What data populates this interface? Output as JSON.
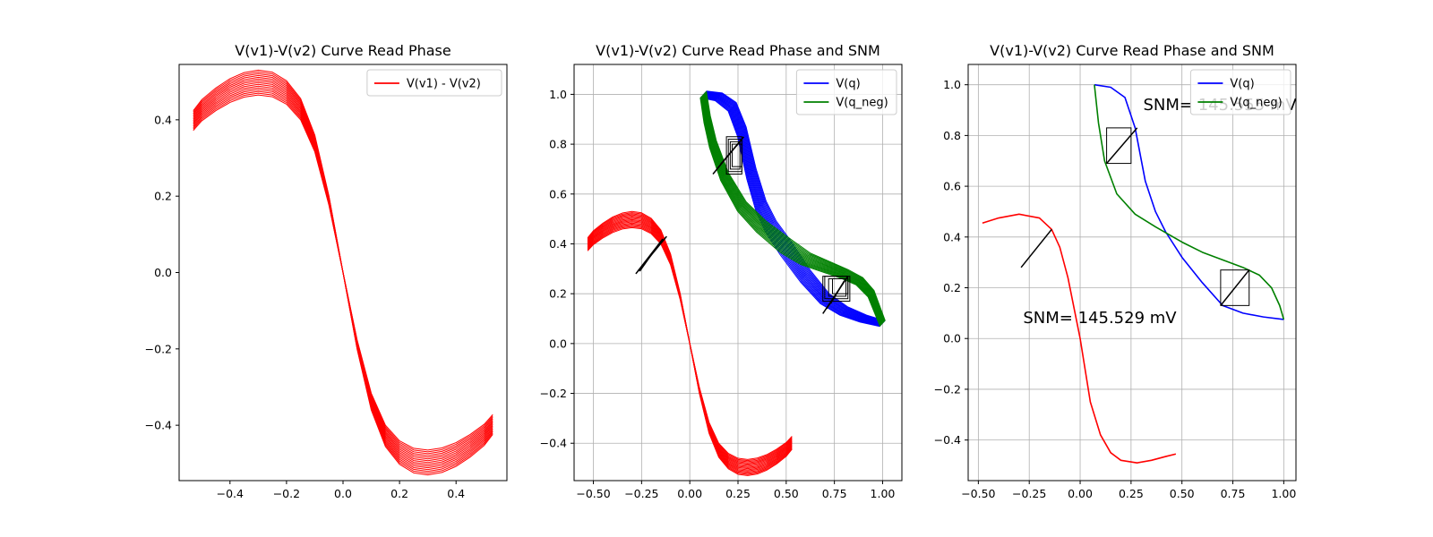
{
  "chart_data": [
    {
      "type": "line",
      "title": "V(v1)-V(v2) Curve Read Phase",
      "xlabel": "",
      "ylabel": "",
      "xlim": [
        -0.58,
        0.58
      ],
      "ylim": [
        -0.545,
        0.545
      ],
      "xticks": [
        -0.4,
        -0.2,
        0.0,
        0.2,
        0.4
      ],
      "xtick_labels": [
        "−0.4",
        "−0.2",
        "0.0",
        "0.2",
        "0.4"
      ],
      "yticks": [
        -0.4,
        -0.2,
        0.0,
        0.2,
        0.4
      ],
      "ytick_labels": [
        "−0.4",
        "−0.2",
        "0.0",
        "0.2",
        "0.4"
      ],
      "grid": false,
      "legend": "top-right",
      "series": [
        {
          "name": "V(v1) - V(v2)",
          "color": "#ff0000",
          "family_count": 15,
          "scale_range": [
            0.93,
            1.06
          ],
          "points": [
            [
              -0.53,
              0.4
            ],
            [
              -0.5,
              0.427
            ],
            [
              -0.45,
              0.456
            ],
            [
              -0.4,
              0.479
            ],
            [
              -0.35,
              0.494
            ],
            [
              -0.3,
              0.5
            ],
            [
              -0.25,
              0.495
            ],
            [
              -0.2,
              0.474
            ],
            [
              -0.15,
              0.43
            ],
            [
              -0.1,
              0.34
            ],
            [
              -0.05,
              0.19
            ],
            [
              0.0,
              0.0
            ],
            [
              0.05,
              -0.19
            ],
            [
              0.1,
              -0.34
            ],
            [
              0.15,
              -0.43
            ],
            [
              0.2,
              -0.474
            ],
            [
              0.25,
              -0.495
            ],
            [
              0.3,
              -0.5
            ],
            [
              0.35,
              -0.494
            ],
            [
              0.4,
              -0.479
            ],
            [
              0.45,
              -0.456
            ],
            [
              0.5,
              -0.427
            ],
            [
              0.53,
              -0.4
            ]
          ]
        }
      ]
    },
    {
      "type": "line",
      "title": "V(v1)-V(v2) Curve Read Phase and SNM",
      "xlabel": "",
      "ylabel": "",
      "xlim": [
        -0.6,
        1.1
      ],
      "ylim": [
        -0.55,
        1.12
      ],
      "xticks": [
        -0.5,
        -0.25,
        0.0,
        0.25,
        0.5,
        0.75,
        1.0
      ],
      "xtick_labels": [
        "−0.50",
        "−0.25",
        "0.00",
        "0.25",
        "0.50",
        "0.75",
        "1.00"
      ],
      "yticks": [
        -0.4,
        -0.2,
        0.0,
        0.2,
        0.4,
        0.6,
        0.8,
        1.0
      ],
      "ytick_labels": [
        "−0.4",
        "−0.2",
        "0.0",
        "0.2",
        "0.4",
        "0.6",
        "0.8",
        "1.0"
      ],
      "grid": true,
      "legend": "top-right",
      "series": [
        {
          "name": "V(q)",
          "color": "#0000ff",
          "family_count": 15,
          "points": [
            [
              0.07,
              1.0
            ],
            [
              0.15,
              0.99
            ],
            [
              0.22,
              0.95
            ],
            [
              0.27,
              0.85
            ],
            [
              0.32,
              0.68
            ],
            [
              0.37,
              0.55
            ],
            [
              0.42,
              0.47
            ],
            [
              0.5,
              0.38
            ],
            [
              0.6,
              0.27
            ],
            [
              0.7,
              0.18
            ],
            [
              0.8,
              0.13
            ],
            [
              0.9,
              0.1
            ],
            [
              1.0,
              0.08
            ]
          ]
        },
        {
          "name": "V(q_neg)",
          "color": "#008000",
          "family_count": 15,
          "points": [
            [
              0.07,
              1.0
            ],
            [
              0.09,
              0.9
            ],
            [
              0.12,
              0.8
            ],
            [
              0.18,
              0.67
            ],
            [
              0.27,
              0.55
            ],
            [
              0.37,
              0.47
            ],
            [
              0.5,
              0.39
            ],
            [
              0.6,
              0.34
            ],
            [
              0.7,
              0.31
            ],
            [
              0.8,
              0.28
            ],
            [
              0.88,
              0.25
            ],
            [
              0.94,
              0.2
            ],
            [
              0.98,
              0.12
            ],
            [
              1.0,
              0.08
            ]
          ]
        },
        {
          "name": "",
          "color": "#ff0000",
          "family_count": 15,
          "scale_range": [
            0.93,
            1.06
          ],
          "points": [
            [
              -0.53,
              0.4
            ],
            [
              -0.5,
              0.427
            ],
            [
              -0.45,
              0.456
            ],
            [
              -0.4,
              0.479
            ],
            [
              -0.35,
              0.494
            ],
            [
              -0.3,
              0.5
            ],
            [
              -0.25,
              0.495
            ],
            [
              -0.2,
              0.474
            ],
            [
              -0.15,
              0.43
            ],
            [
              -0.1,
              0.34
            ],
            [
              -0.05,
              0.19
            ],
            [
              0.0,
              0.0
            ],
            [
              0.05,
              -0.19
            ],
            [
              0.1,
              -0.34
            ],
            [
              0.15,
              -0.43
            ],
            [
              0.2,
              -0.474
            ],
            [
              0.25,
              -0.495
            ],
            [
              0.3,
              -0.5
            ],
            [
              0.35,
              -0.494
            ],
            [
              0.4,
              -0.479
            ],
            [
              0.45,
              -0.456
            ],
            [
              0.5,
              -0.427
            ],
            [
              0.53,
              -0.4
            ]
          ]
        }
      ],
      "segments": [
        [
          -0.28,
          0.28,
          -0.12,
          0.43
        ],
        [
          -0.27,
          0.29,
          -0.14,
          0.42
        ],
        [
          -0.26,
          0.29,
          -0.15,
          0.41
        ],
        [
          0.12,
          0.68,
          0.28,
          0.83
        ],
        [
          0.14,
          0.7,
          0.27,
          0.82
        ],
        [
          0.16,
          0.72,
          0.26,
          0.81
        ],
        [
          0.69,
          0.12,
          0.82,
          0.27
        ],
        [
          0.71,
          0.14,
          0.81,
          0.26
        ],
        [
          0.73,
          0.16,
          0.8,
          0.25
        ]
      ],
      "squares": [
        [
          0.19,
          0.68,
          0.27,
          0.83
        ],
        [
          0.2,
          0.69,
          0.27,
          0.82
        ],
        [
          0.21,
          0.7,
          0.26,
          0.81
        ],
        [
          0.22,
          0.71,
          0.27,
          0.8
        ],
        [
          0.69,
          0.17,
          0.83,
          0.27
        ],
        [
          0.7,
          0.18,
          0.82,
          0.27
        ],
        [
          0.72,
          0.19,
          0.81,
          0.26
        ],
        [
          0.74,
          0.2,
          0.82,
          0.26
        ]
      ]
    },
    {
      "type": "line",
      "title": "V(v1)-V(v2) Curve Read Phase and SNM",
      "xlabel": "",
      "ylabel": "",
      "xlim": [
        -0.55,
        1.06
      ],
      "ylim": [
        -0.56,
        1.08
      ],
      "xticks": [
        -0.5,
        -0.25,
        0.0,
        0.25,
        0.5,
        0.75,
        1.0
      ],
      "xtick_labels": [
        "−0.50",
        "−0.25",
        "0.00",
        "0.25",
        "0.50",
        "0.75",
        "1.00"
      ],
      "yticks": [
        -0.4,
        -0.2,
        0.0,
        0.2,
        0.4,
        0.6,
        0.8,
        1.0
      ],
      "ytick_labels": [
        "−0.4",
        "−0.2",
        "0.0",
        "0.2",
        "0.4",
        "0.6",
        "0.8",
        "1.0"
      ],
      "grid": true,
      "legend": "top-right",
      "series": [
        {
          "name": "V(q)",
          "color": "#0000ff",
          "family_count": 1,
          "points": [
            [
              0.07,
              1.0
            ],
            [
              0.15,
              0.99
            ],
            [
              0.22,
              0.95
            ],
            [
              0.27,
              0.83
            ],
            [
              0.32,
              0.62
            ],
            [
              0.37,
              0.5
            ],
            [
              0.42,
              0.42
            ],
            [
              0.5,
              0.32
            ],
            [
              0.6,
              0.22
            ],
            [
              0.7,
              0.13
            ],
            [
              0.8,
              0.1
            ],
            [
              0.9,
              0.085
            ],
            [
              1.0,
              0.075
            ]
          ]
        },
        {
          "name": "V(q_neg)",
          "color": "#008000",
          "family_count": 1,
          "points": [
            [
              0.07,
              1.0
            ],
            [
              0.09,
              0.85
            ],
            [
              0.12,
              0.7
            ],
            [
              0.18,
              0.57
            ],
            [
              0.27,
              0.49
            ],
            [
              0.37,
              0.44
            ],
            [
              0.5,
              0.38
            ],
            [
              0.6,
              0.34
            ],
            [
              0.7,
              0.31
            ],
            [
              0.8,
              0.28
            ],
            [
              0.88,
              0.25
            ],
            [
              0.94,
              0.2
            ],
            [
              0.98,
              0.13
            ],
            [
              1.0,
              0.075
            ]
          ]
        },
        {
          "name": "",
          "color": "#ff0000",
          "family_count": 1,
          "points": [
            [
              -0.48,
              0.455
            ],
            [
              -0.4,
              0.475
            ],
            [
              -0.3,
              0.49
            ],
            [
              -0.2,
              0.475
            ],
            [
              -0.14,
              0.43
            ],
            [
              -0.1,
              0.36
            ],
            [
              -0.06,
              0.24
            ],
            [
              -0.02,
              0.08
            ],
            [
              0.0,
              0.0
            ],
            [
              0.02,
              -0.1
            ],
            [
              0.05,
              -0.25
            ],
            [
              0.1,
              -0.38
            ],
            [
              0.15,
              -0.45
            ],
            [
              0.2,
              -0.48
            ],
            [
              0.28,
              -0.49
            ],
            [
              0.35,
              -0.48
            ],
            [
              0.42,
              -0.465
            ],
            [
              0.47,
              -0.455
            ]
          ]
        }
      ],
      "segments": [
        [
          -0.29,
          0.28,
          -0.14,
          0.43
        ],
        [
          0.13,
          0.69,
          0.28,
          0.83
        ],
        [
          0.69,
          0.13,
          0.83,
          0.27
        ]
      ],
      "squares": [
        [
          0.13,
          0.69,
          0.25,
          0.83
        ],
        [
          0.69,
          0.13,
          0.83,
          0.27
        ]
      ],
      "annotations": [
        {
          "text": "SNM= 145.555 mV",
          "x": 0.31,
          "y": 0.9
        },
        {
          "text": "SNM= 145.529 mV",
          "x": -0.28,
          "y": 0.06
        }
      ]
    }
  ]
}
